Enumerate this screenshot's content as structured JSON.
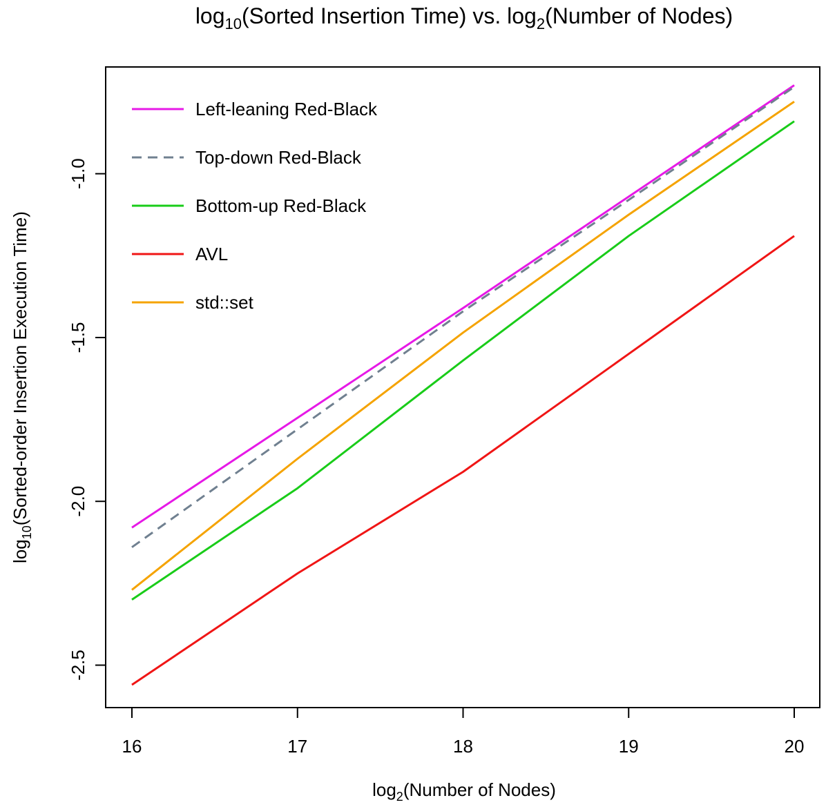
{
  "chart_data": {
    "type": "line",
    "title": {
      "prefix": "log",
      "sub1": "10",
      "middle": "(Sorted Insertion Time) vs. log",
      "sub2": "2",
      "suffix": "(Number of Nodes)"
    },
    "xlabel": {
      "prefix": "log",
      "sub": "2",
      "suffix": "(Number of Nodes)"
    },
    "ylabel": {
      "prefix": "log",
      "sub": "10",
      "suffix": "(Sorted-order Insertion Execution Time)"
    },
    "x": [
      16,
      17,
      18,
      19,
      20
    ],
    "xlim": [
      16,
      20
    ],
    "ylim": [
      -2.56,
      -0.75
    ],
    "x_ticks": [
      "16",
      "17",
      "18",
      "19",
      "20"
    ],
    "y_ticks": [
      "-1.0",
      "-1.5",
      "-2.0",
      "-2.5"
    ],
    "y_tick_values": [
      -1.0,
      -1.5,
      -2.0,
      -2.5
    ],
    "grid": false,
    "legend_position": "top-left",
    "series": [
      {
        "name": "Left-leaning Red-Black",
        "color": "#e619e6",
        "dash": false,
        "values": [
          -2.08,
          -1.745,
          -1.41,
          -1.07,
          -0.73
        ]
      },
      {
        "name": "Top-down Red-Black",
        "color": "#708090",
        "dash": true,
        "values": [
          -2.14,
          -1.78,
          -1.42,
          -1.08,
          -0.735
        ]
      },
      {
        "name": "Bottom-up Red-Black",
        "color": "#19cc19",
        "dash": false,
        "values": [
          -2.3,
          -1.96,
          -1.57,
          -1.19,
          -0.84
        ]
      },
      {
        "name": "AVL",
        "color": "#f01515",
        "dash": false,
        "values": [
          -2.56,
          -2.22,
          -1.91,
          -1.55,
          -1.19
        ]
      },
      {
        "name": "std::set",
        "color": "#f5a300",
        "dash": false,
        "values": [
          -2.27,
          -1.87,
          -1.485,
          -1.125,
          -0.78
        ]
      }
    ]
  }
}
